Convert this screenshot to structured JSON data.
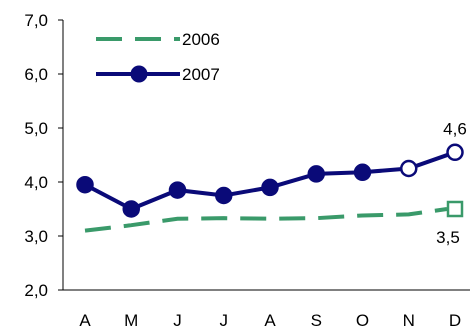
{
  "chart_data": {
    "type": "line",
    "title": "",
    "xlabel": "",
    "ylabel": "",
    "categories": [
      "A",
      "M",
      "J",
      "J",
      "A",
      "S",
      "O",
      "N",
      "D"
    ],
    "ylim": [
      2.0,
      7.0
    ],
    "yticks": [
      "2,0",
      "3,0",
      "4,0",
      "5,0",
      "6,0",
      "7,0"
    ],
    "grid": false,
    "legend": "top-left",
    "series": [
      {
        "name": "2006",
        "values": [
          3.1,
          3.2,
          3.32,
          3.33,
          3.32,
          3.33,
          3.38,
          3.4,
          3.5
        ],
        "color": "#3a9a6a",
        "style": "dashed",
        "final_point_marker": "open-square"
      },
      {
        "name": "2007",
        "values": [
          3.95,
          3.5,
          3.85,
          3.75,
          3.9,
          4.15,
          4.18,
          4.25,
          4.55
        ],
        "color": "#0a0a78",
        "style": "solid",
        "marker": "circle",
        "projected_points": [
          "N",
          "D"
        ]
      }
    ],
    "annotations": [
      {
        "text": "4,6",
        "category": "D",
        "series": "2007"
      },
      {
        "text": "3,5",
        "category": "D",
        "series": "2006"
      }
    ]
  }
}
